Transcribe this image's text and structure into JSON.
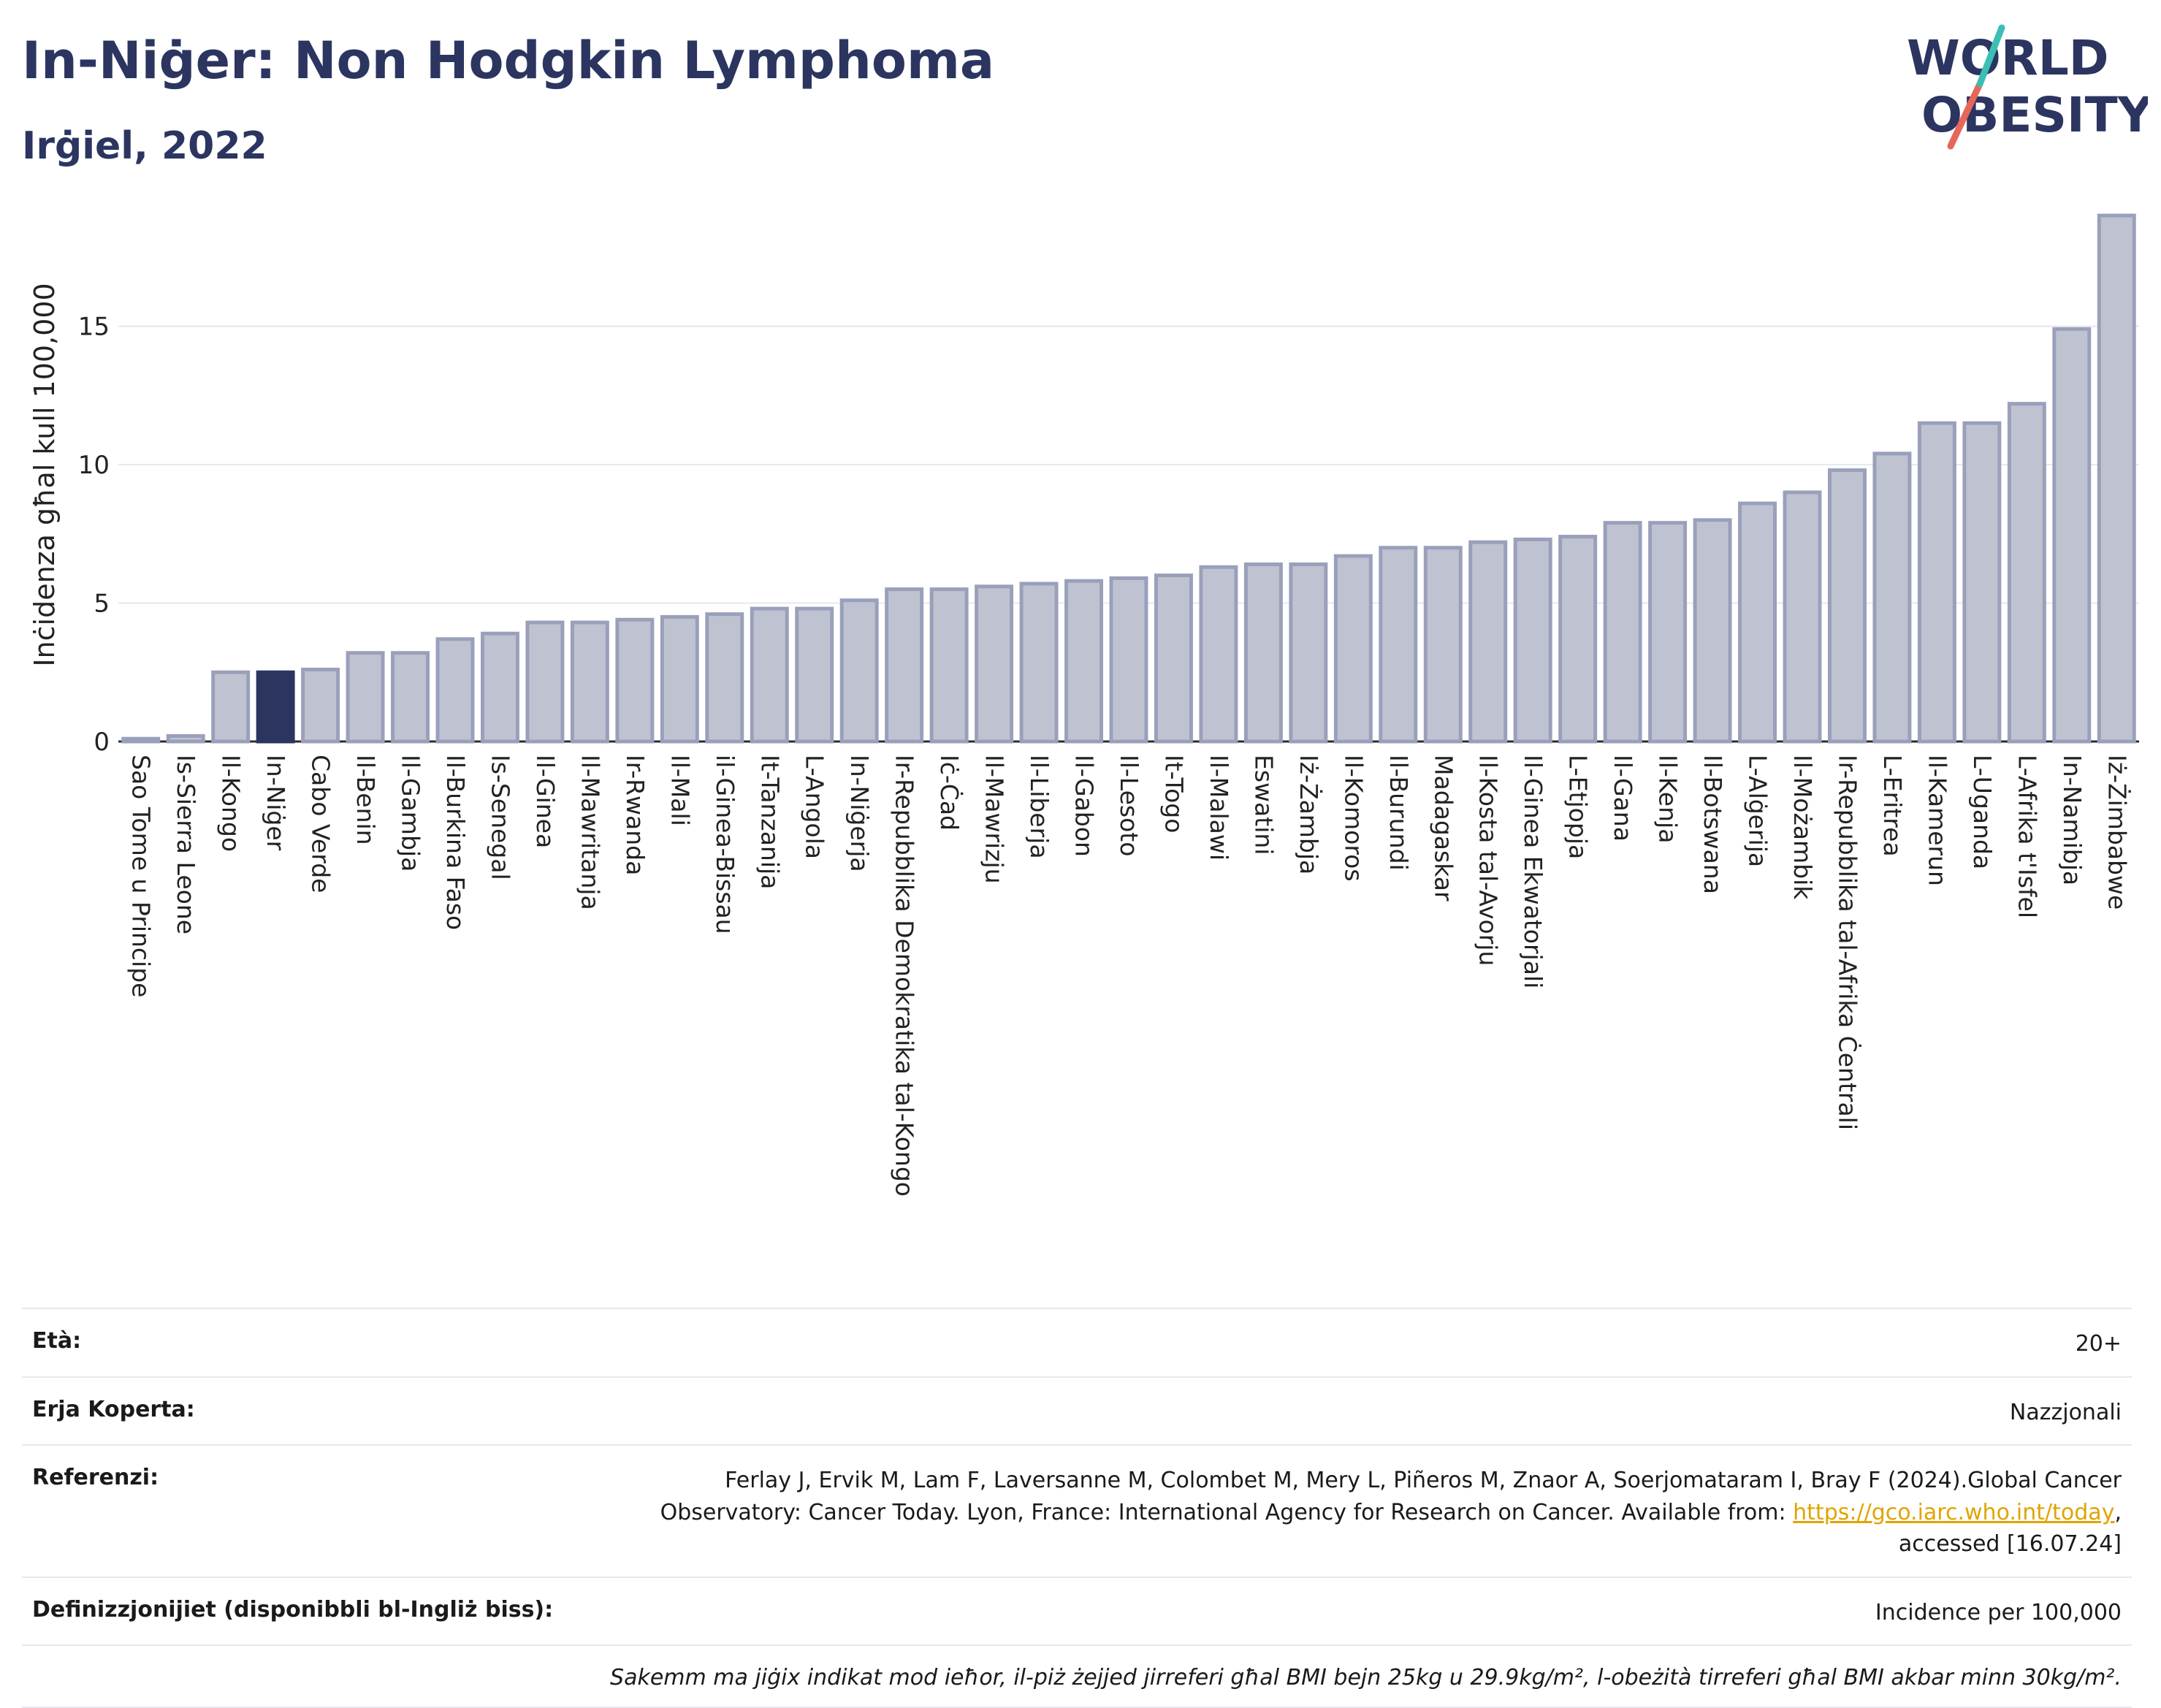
{
  "header": {
    "title": "In-Niġer: Non Hodgkin Lymphoma",
    "subtitle": "Irġiel, 2022",
    "logo_line1": "WORLD",
    "logo_line2": "OBESITY"
  },
  "colors": {
    "bar": "#bfc3d1",
    "bar_stroke": "#9aa0ba",
    "highlight": "#2b3560",
    "title": "#2b3560",
    "logo_teal": "#3bbfb4",
    "logo_red": "#e5675a"
  },
  "chart_data": {
    "type": "bar",
    "ylabel": "Inċidenza għal kull 100,000",
    "ylim": [
      0,
      19
    ],
    "yticks": [
      0,
      5,
      10,
      15
    ],
    "grid": true,
    "highlight": "In-Niġer",
    "categories": [
      "Sao Tome u Principe",
      "Is-Sierra Leone",
      "Il-Kongo",
      "In-Niġer",
      "Cabo Verde",
      "Il-Benin",
      "Il-Gambja",
      "Il-Burkina Faso",
      "Is-Senegal",
      "Il-Ginea",
      "Il-Mawritanja",
      "Ir-Rwanda",
      "Il-Mali",
      "il-Ginea-Bissau",
      "It-Tanzanija",
      "L-Angola",
      "In-Niġerja",
      "Ir-Repubblika Demokratika tal-Kongo",
      "Iċ-Ċad",
      "Il-Mawrizju",
      "Il-Liberja",
      "Il-Gabon",
      "Il-Lesoto",
      "It-Togo",
      "Il-Malawi",
      "Eswatini",
      "Iż-Żambja",
      "Il-Komoros",
      "Il-Burundi",
      "Madagaskar",
      "Il-Kosta tal-Avorju",
      "Il-Ginea Ekwatorjali",
      "L-Etjopja",
      "Il-Gana",
      "Il-Kenja",
      "Il-Botswana",
      "L-Alġerija",
      "Il-Możambik",
      "Ir-Repubblika tal-Afrika Ċentrali",
      "L-Eritrea",
      "Il-Kamerun",
      "L-Uganda",
      "L-Afrika t'Isfel",
      "In-Namibja",
      "Iż-Żimbabwe"
    ],
    "values": [
      0.1,
      0.2,
      2.5,
      2.5,
      2.6,
      3.2,
      3.2,
      3.7,
      3.9,
      4.3,
      4.3,
      4.4,
      4.5,
      4.6,
      4.8,
      4.8,
      5.1,
      5.5,
      5.5,
      5.6,
      5.7,
      5.8,
      5.9,
      6.0,
      6.3,
      6.4,
      6.4,
      6.7,
      7.0,
      7.0,
      7.2,
      7.3,
      7.4,
      7.9,
      7.9,
      8.0,
      8.6,
      9.0,
      9.8,
      10.4,
      11.5,
      11.5,
      12.2,
      14.9,
      19.0
    ]
  },
  "info": {
    "age_label": "Età:",
    "age_value": "20+",
    "area_label": "Erja Koperta:",
    "area_value": "Nazzjonali",
    "ref_label": "Referenzi:",
    "ref_text_1": "Ferlay J, Ervik M, Lam F, Laversanne M, Colombet M, Mery L, Piñeros M, Znaor A, Soerjomataram I, Bray F (2024).Global Cancer Observatory: Cancer Today. Lyon, France: International Agency for Research on Cancer. Available from: ",
    "ref_link": "https://gco.iarc.who.int/today",
    "ref_text_2": ", accessed [16.07.24]",
    "def_label": "Definizzjonijiet (disponibbli bl-Ingliż biss):",
    "def_value": "Incidence per 100,000",
    "note": "Sakemm ma jiġix indikat mod ieħor, il-piż żejjed jirreferi għal BMI bejn 25kg u 29.9kg/m², l-obeżità tirreferi għal BMI akbar minn 30kg/m²."
  }
}
